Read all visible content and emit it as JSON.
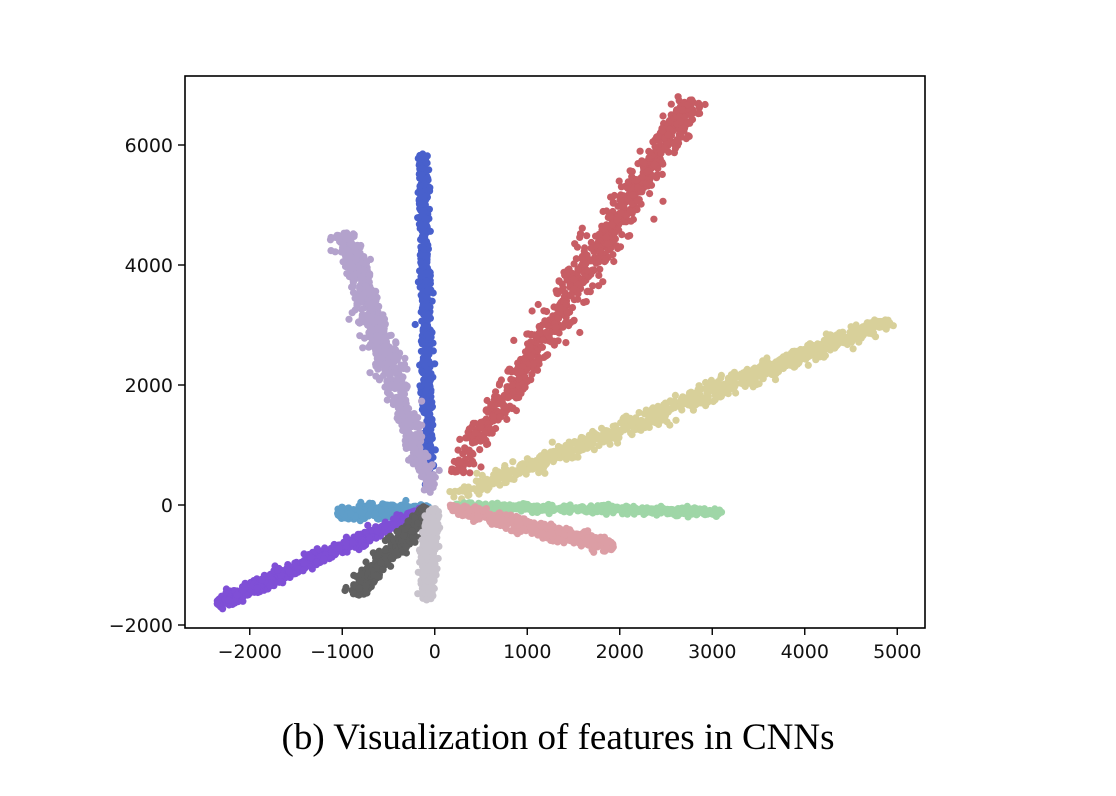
{
  "caption": "(b) Visualization of features in CNNs",
  "chart_data": {
    "type": "scatter",
    "title": "",
    "xlabel": "",
    "ylabel": "",
    "xlim": [
      -2700,
      5300
    ],
    "ylim": [
      -2050,
      7150
    ],
    "xticks": [
      -2000,
      -1000,
      0,
      1000,
      2000,
      3000,
      4000,
      5000
    ],
    "yticks": [
      -2000,
      0,
      2000,
      4000,
      6000
    ],
    "xtick_labels": [
      "−2000",
      "−1000",
      "0",
      "1000",
      "2000",
      "3000",
      "4000",
      "5000"
    ],
    "ytick_labels": [
      "−2000",
      "0",
      "2000",
      "4000",
      "6000"
    ],
    "grid": false,
    "legend": "none",
    "series": [
      {
        "color": "#c75d64",
        "start": [
          220,
          480
        ],
        "end": [
          2780,
          6750
        ],
        "spread": 95,
        "count": 900
      },
      {
        "color": "#d8d09a",
        "start": [
          200,
          130
        ],
        "end": [
          4900,
          3080
        ],
        "spread": 75,
        "count": 900
      },
      {
        "color": "#4860cc",
        "start": [
          -60,
          300
        ],
        "end": [
          -130,
          5850
        ],
        "spread": 32,
        "count": 600
      },
      {
        "color": "#b3a2cc",
        "start": [
          -30,
          200
        ],
        "end": [
          -980,
          4530
        ],
        "spread": 75,
        "count": 700
      },
      {
        "color": "#9fd6a7",
        "start": [
          200,
          -20
        ],
        "end": [
          3100,
          -120
        ],
        "spread": 35,
        "count": 500
      },
      {
        "color": "#dc9ea5",
        "start": [
          150,
          -40
        ],
        "end": [
          1930,
          -700
        ],
        "spread": 60,
        "count": 500
      },
      {
        "color": "#5f9ec9",
        "start": [
          -60,
          -70
        ],
        "end": [
          -1050,
          -140
        ],
        "spread": 55,
        "count": 400
      },
      {
        "color": "#7f4fd6",
        "start": [
          -80,
          -60
        ],
        "end": [
          -2350,
          -1650
        ],
        "spread": 55,
        "count": 700
      },
      {
        "color": "#5f5f5f",
        "start": [
          -60,
          -60
        ],
        "end": [
          -880,
          -1480
        ],
        "spread": 60,
        "count": 450
      },
      {
        "color": "#c8c3cc",
        "start": [
          -20,
          -50
        ],
        "end": [
          -90,
          -1580
        ],
        "spread": 40,
        "count": 400
      }
    ]
  }
}
